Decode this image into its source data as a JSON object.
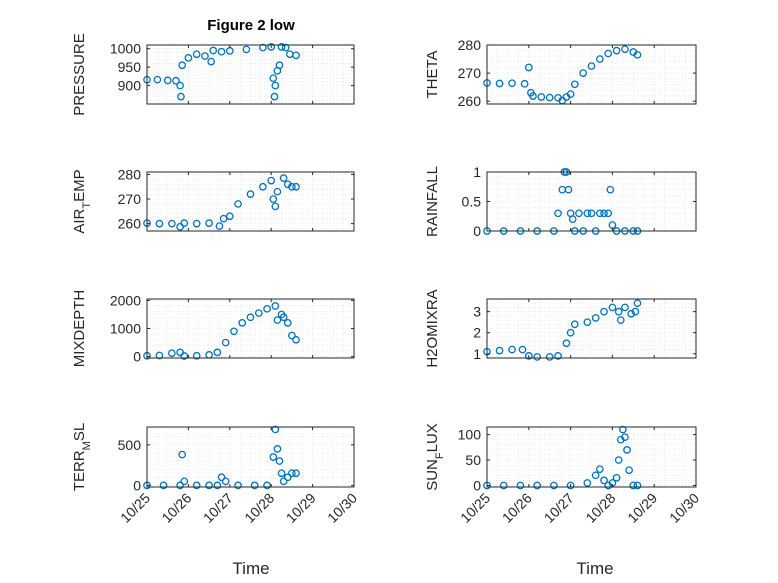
{
  "figure": {
    "title": "Figure 2 low",
    "x_label": "Time"
  },
  "style": {
    "marker_color": "#0072BD",
    "axis_color": "#262626",
    "grid_color": "#dcdcdc"
  },
  "chart_data": [
    {
      "type": "scatter",
      "name": "pressure",
      "ylabel": "PRESSURE",
      "ylim": [
        850,
        1010
      ],
      "yticks": [
        900,
        950,
        1000
      ],
      "xlim": [
        0,
        5
      ],
      "xticks": [
        0,
        1,
        2,
        3,
        4,
        5
      ],
      "xtick_labels": [
        "10/25",
        "10/26",
        "10/27",
        "10/28",
        "10/29",
        "10/30"
      ],
      "grid": true,
      "points": [
        [
          0,
          916
        ],
        [
          0.25,
          916
        ],
        [
          0.5,
          914
        ],
        [
          0.7,
          913
        ],
        [
          0.8,
          900
        ],
        [
          0.82,
          870
        ],
        [
          0.85,
          955
        ],
        [
          1.0,
          975
        ],
        [
          1.2,
          985
        ],
        [
          1.4,
          980
        ],
        [
          1.55,
          965
        ],
        [
          1.6,
          995
        ],
        [
          1.8,
          992
        ],
        [
          2.0,
          994
        ],
        [
          2.4,
          998
        ],
        [
          2.8,
          1003
        ],
        [
          3.0,
          1005
        ],
        [
          3.05,
          920
        ],
        [
          3.08,
          870
        ],
        [
          3.1,
          900
        ],
        [
          3.15,
          940
        ],
        [
          3.2,
          955
        ],
        [
          3.25,
          1005
        ],
        [
          3.35,
          1003
        ],
        [
          3.45,
          985
        ],
        [
          3.6,
          982
        ]
      ]
    },
    {
      "type": "scatter",
      "name": "theta",
      "ylabel": "THETA",
      "ylim": [
        259,
        280
      ],
      "yticks": [
        260,
        270,
        280
      ],
      "xlim": [
        0,
        5
      ],
      "xticks": [
        0,
        1,
        2,
        3,
        4,
        5
      ],
      "xtick_labels": [
        "10/25",
        "10/26",
        "10/27",
        "10/28",
        "10/29",
        "10/30"
      ],
      "grid": true,
      "points": [
        [
          0,
          266.5
        ],
        [
          0.3,
          266.3
        ],
        [
          0.6,
          266.4
        ],
        [
          0.9,
          266.2
        ],
        [
          1.0,
          272
        ],
        [
          1.05,
          263
        ],
        [
          1.1,
          261.8
        ],
        [
          1.3,
          261.5
        ],
        [
          1.5,
          261.3
        ],
        [
          1.7,
          261.2
        ],
        [
          1.8,
          260.2
        ],
        [
          1.9,
          261.5
        ],
        [
          2.0,
          262.5
        ],
        [
          2.1,
          266
        ],
        [
          2.3,
          270
        ],
        [
          2.5,
          272.5
        ],
        [
          2.7,
          275
        ],
        [
          2.9,
          277
        ],
        [
          3.1,
          278
        ],
        [
          3.3,
          278.5
        ],
        [
          3.5,
          277.5
        ],
        [
          3.6,
          276.5
        ]
      ]
    },
    {
      "type": "scatter",
      "name": "air-temp",
      "ylabel": "AIR_TEMP",
      "ylim": [
        257,
        281
      ],
      "yticks": [
        260,
        270,
        280
      ],
      "xlim": [
        0,
        5
      ],
      "xticks": [
        0,
        1,
        2,
        3,
        4,
        5
      ],
      "xtick_labels": [
        "10/25",
        "10/26",
        "10/27",
        "10/28",
        "10/29",
        "10/30"
      ],
      "grid": true,
      "points": [
        [
          0,
          260.2
        ],
        [
          0.3,
          260
        ],
        [
          0.6,
          260
        ],
        [
          0.8,
          258.7
        ],
        [
          0.9,
          260.2
        ],
        [
          1.2,
          260
        ],
        [
          1.5,
          260.2
        ],
        [
          1.75,
          259
        ],
        [
          1.85,
          262
        ],
        [
          2.0,
          263
        ],
        [
          2.2,
          268
        ],
        [
          2.5,
          272
        ],
        [
          2.8,
          275
        ],
        [
          3.0,
          277.5
        ],
        [
          3.05,
          270
        ],
        [
          3.1,
          267
        ],
        [
          3.15,
          273
        ],
        [
          3.3,
          278.5
        ],
        [
          3.4,
          276
        ],
        [
          3.5,
          275
        ],
        [
          3.6,
          275
        ]
      ]
    },
    {
      "type": "scatter",
      "name": "rainfall",
      "ylabel": "RAINFALL",
      "ylim": [
        0,
        1
      ],
      "yticks": [
        0,
        0.5,
        1
      ],
      "xlim": [
        0,
        5
      ],
      "xticks": [
        0,
        1,
        2,
        3,
        4,
        5
      ],
      "xtick_labels": [
        "10/25",
        "10/26",
        "10/27",
        "10/28",
        "10/29",
        "10/30"
      ],
      "grid": true,
      "points": [
        [
          0,
          0
        ],
        [
          0.4,
          0
        ],
        [
          0.8,
          0
        ],
        [
          1.2,
          0
        ],
        [
          1.6,
          0
        ],
        [
          1.7,
          0.3
        ],
        [
          1.8,
          0.7
        ],
        [
          1.85,
          1
        ],
        [
          1.9,
          1
        ],
        [
          1.95,
          0.7
        ],
        [
          2.0,
          0.3
        ],
        [
          2.05,
          0.2
        ],
        [
          2.1,
          0
        ],
        [
          2.2,
          0.3
        ],
        [
          2.3,
          0
        ],
        [
          2.4,
          0.3
        ],
        [
          2.5,
          0.3
        ],
        [
          2.6,
          0
        ],
        [
          2.7,
          0.3
        ],
        [
          2.8,
          0.3
        ],
        [
          2.9,
          0.3
        ],
        [
          2.95,
          0.7
        ],
        [
          3.0,
          0.1
        ],
        [
          3.1,
          0
        ],
        [
          3.3,
          0
        ],
        [
          3.5,
          0
        ],
        [
          3.6,
          0
        ]
      ]
    },
    {
      "type": "scatter",
      "name": "mixdepth",
      "ylabel": "MIXDEPTH",
      "ylim": [
        -50,
        2050
      ],
      "yticks": [
        0,
        1000,
        2000
      ],
      "xlim": [
        0,
        5
      ],
      "xticks": [
        0,
        1,
        2,
        3,
        4,
        5
      ],
      "xtick_labels": [
        "10/25",
        "10/26",
        "10/27",
        "10/28",
        "10/29",
        "10/30"
      ],
      "grid": true,
      "points": [
        [
          0,
          30
        ],
        [
          0.3,
          40
        ],
        [
          0.6,
          120
        ],
        [
          0.8,
          150
        ],
        [
          0.9,
          20
        ],
        [
          1.2,
          30
        ],
        [
          1.5,
          60
        ],
        [
          1.7,
          150
        ],
        [
          1.9,
          500
        ],
        [
          2.1,
          900
        ],
        [
          2.3,
          1200
        ],
        [
          2.5,
          1400
        ],
        [
          2.7,
          1550
        ],
        [
          2.9,
          1700
        ],
        [
          3.1,
          1800
        ],
        [
          3.15,
          1300
        ],
        [
          3.25,
          1500
        ],
        [
          3.3,
          1400
        ],
        [
          3.4,
          1200
        ],
        [
          3.5,
          750
        ],
        [
          3.6,
          600
        ]
      ]
    },
    {
      "type": "scatter",
      "name": "h2omixra",
      "ylabel": "H2OMIXRA",
      "ylim": [
        0.8,
        3.6
      ],
      "yticks": [
        1,
        2,
        3
      ],
      "xlim": [
        0,
        5
      ],
      "xticks": [
        0,
        1,
        2,
        3,
        4,
        5
      ],
      "xtick_labels": [
        "10/25",
        "10/26",
        "10/27",
        "10/28",
        "10/29",
        "10/30"
      ],
      "grid": true,
      "points": [
        [
          0,
          1.1
        ],
        [
          0.3,
          1.15
        ],
        [
          0.6,
          1.2
        ],
        [
          0.85,
          1.2
        ],
        [
          1.0,
          0.9
        ],
        [
          1.2,
          0.85
        ],
        [
          1.5,
          0.85
        ],
        [
          1.7,
          0.9
        ],
        [
          1.9,
          1.5
        ],
        [
          2.0,
          2.0
        ],
        [
          2.1,
          2.4
        ],
        [
          2.4,
          2.5
        ],
        [
          2.6,
          2.7
        ],
        [
          2.8,
          3.0
        ],
        [
          3.0,
          3.2
        ],
        [
          3.15,
          3.0
        ],
        [
          3.2,
          2.6
        ],
        [
          3.3,
          3.2
        ],
        [
          3.45,
          2.9
        ],
        [
          3.55,
          3.0
        ],
        [
          3.6,
          3.4
        ]
      ]
    },
    {
      "type": "scatter",
      "name": "terr-msl",
      "ylabel": "TERR_MSL",
      "ylim": [
        -20,
        720
      ],
      "yticks": [
        0,
        500
      ],
      "xlim": [
        0,
        5
      ],
      "xticks": [
        0,
        1,
        2,
        3,
        4,
        5
      ],
      "xtick_labels": [
        "10/25",
        "10/26",
        "10/27",
        "10/28",
        "10/29",
        "10/30"
      ],
      "grid": true,
      "points": [
        [
          0,
          0
        ],
        [
          0.4,
          0
        ],
        [
          0.8,
          0
        ],
        [
          0.85,
          380
        ],
        [
          0.9,
          50
        ],
        [
          1.2,
          0
        ],
        [
          1.5,
          0
        ],
        [
          1.7,
          0
        ],
        [
          1.8,
          100
        ],
        [
          1.9,
          50
        ],
        [
          2.2,
          0
        ],
        [
          2.6,
          0
        ],
        [
          2.9,
          0
        ],
        [
          3.05,
          350
        ],
        [
          3.1,
          690
        ],
        [
          3.15,
          450
        ],
        [
          3.2,
          300
        ],
        [
          3.25,
          150
        ],
        [
          3.3,
          50
        ],
        [
          3.4,
          100
        ],
        [
          3.5,
          150
        ],
        [
          3.6,
          150
        ]
      ]
    },
    {
      "type": "scatter",
      "name": "sun-flux",
      "ylabel": "SUN_FLUX",
      "ylim": [
        -3,
        115
      ],
      "yticks": [
        0,
        50,
        100
      ],
      "xlim": [
        0,
        5
      ],
      "xticks": [
        0,
        1,
        2,
        3,
        4,
        5
      ],
      "xtick_labels": [
        "10/25",
        "10/26",
        "10/27",
        "10/28",
        "10/29",
        "10/30"
      ],
      "grid": true,
      "points": [
        [
          0,
          0
        ],
        [
          0.4,
          0
        ],
        [
          0.8,
          0
        ],
        [
          1.2,
          0
        ],
        [
          1.6,
          0
        ],
        [
          2.0,
          0
        ],
        [
          2.4,
          5
        ],
        [
          2.6,
          20
        ],
        [
          2.7,
          32
        ],
        [
          2.8,
          10
        ],
        [
          2.9,
          0
        ],
        [
          3.0,
          5
        ],
        [
          3.1,
          15
        ],
        [
          3.15,
          50
        ],
        [
          3.2,
          90
        ],
        [
          3.25,
          110
        ],
        [
          3.3,
          95
        ],
        [
          3.35,
          70
        ],
        [
          3.4,
          30
        ],
        [
          3.5,
          0
        ],
        [
          3.6,
          0
        ]
      ]
    }
  ]
}
